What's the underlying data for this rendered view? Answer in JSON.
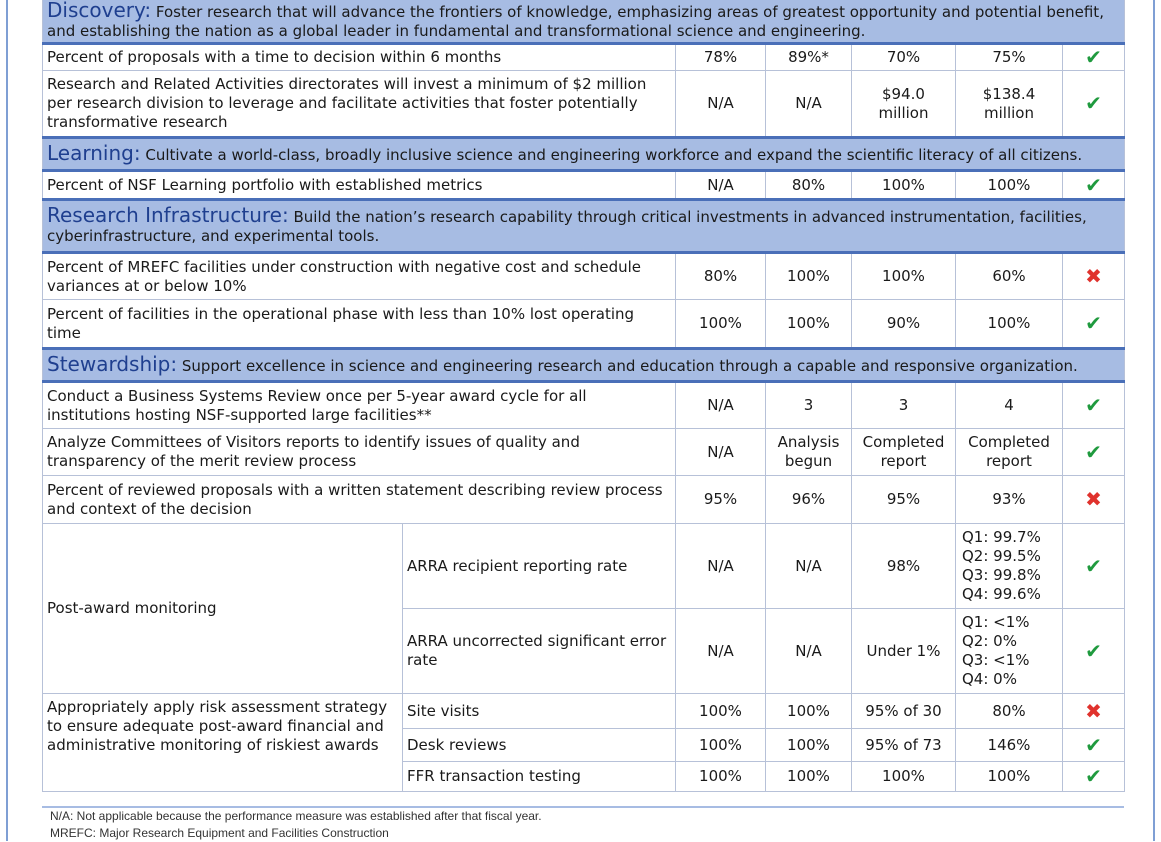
{
  "bands": {
    "discovery": {
      "title": "Discovery:",
      "text": "Foster research that will advance the frontiers of knowledge, emphasizing areas of greatest opportunity and potential benefit, and establishing the nation as a global leader in fundamental and transformational science and engineering."
    },
    "learning": {
      "title": "Learning:",
      "text": "Cultivate a world-class, broadly inclusive science and engineering workforce and expand the scientific literacy of all citizens."
    },
    "research": {
      "title": "Research Infrastructure:",
      "text": "Build the nation’s research capability through critical investments in advanced instrumentation, facilities, cyberinfrastructure, and experimental tools."
    },
    "stewardship": {
      "title": "Stewardship:",
      "text": "Support excellence in science and engineering research and education through a capable and responsive organization."
    }
  },
  "rows": {
    "r1": {
      "measure": "Percent of proposals with a time to decision within 6 months",
      "c1": "78%",
      "c2": "89%*",
      "c3": "70%",
      "c4": "75%",
      "status": "check"
    },
    "r2": {
      "measure": "Research and Related Activities directorates will invest a minimum of $2 million per research division to leverage and facilitate activities that foster potentially transformative research",
      "c1": "N/A",
      "c2": "N/A",
      "c3a": "$94.0",
      "c3b": "million",
      "c4a": "$138.4",
      "c4b": "million",
      "status": "check"
    },
    "r3": {
      "measure": "Percent of NSF Learning portfolio with established metrics",
      "c1": "N/A",
      "c2": "80%",
      "c3": "100%",
      "c4": "100%",
      "status": "check"
    },
    "r4": {
      "measure": "Percent of MREFC facilities under construction with negative cost and schedule variances at or below 10%",
      "c1": "80%",
      "c2": "100%",
      "c3": "100%",
      "c4": "60%",
      "status": "cross"
    },
    "r5": {
      "measure": "Percent of facilities in the operational phase with less than 10% lost operating time",
      "c1": "100%",
      "c2": "100%",
      "c3": "90%",
      "c4": "100%",
      "status": "check"
    },
    "r6": {
      "measure": "Conduct a Business Systems Review once per 5-year award cycle for all institutions hosting NSF-supported large facilities**",
      "c1": "N/A",
      "c2": "3",
      "c3": "3",
      "c4": "4",
      "status": "check"
    },
    "r7": {
      "measure": "Analyze Committees of Visitors reports to identify issues of quality and transparency of the merit review process",
      "c1": "N/A",
      "c2a": "Analysis",
      "c2b": "begun",
      "c3a": "Completed",
      "c3b": "report",
      "c4a": "Completed",
      "c4b": "report",
      "status": "check"
    },
    "r8": {
      "measure": "Percent of reviewed proposals with a written statement describing review process and context of the decision",
      "c1": "95%",
      "c2": "96%",
      "c3": "95%",
      "c4": "93%",
      "status": "cross"
    },
    "post_award": "Post-award monitoring",
    "r9": {
      "sub": "ARRA recipient reporting rate",
      "c1": "N/A",
      "c2": "N/A",
      "c3": "98%",
      "q": [
        "Q1: 99.7%",
        "Q2: 99.5%",
        "Q3: 99.8%",
        "Q4: 99.6%"
      ],
      "status": "check"
    },
    "r10": {
      "sub": "ARRA uncorrected significant error rate",
      "c1": "N/A",
      "c2": "N/A",
      "c3": "Under 1%",
      "q": [
        "Q1: <1%",
        "Q2:   0%",
        "Q3: <1%",
        "Q4:   0%"
      ],
      "status": "check"
    },
    "risk": "Appropriately apply risk assessment strategy to ensure adequate post-award financial and administrative monitoring of riskiest awards",
    "r11": {
      "sub": "Site visits",
      "c1": "100%",
      "c2": "100%",
      "c3": "95% of 30",
      "c4": "80%",
      "status": "cross"
    },
    "r12": {
      "sub": "Desk reviews",
      "c1": "100%",
      "c2": "100%",
      "c3": "95% of 73",
      "c4": "146%",
      "status": "check"
    },
    "r13": {
      "sub": "FFR transaction testing",
      "c1": "100%",
      "c2": "100%",
      "c3": "100%",
      "c4": "100%",
      "status": "check"
    }
  },
  "marks": {
    "check": "✔",
    "cross": "✖"
  },
  "notes": {
    "na": "N/A: Not applicable because the performance measure was established after that fiscal year.",
    "mrefc": "MREFC: Major Research Equipment and Facilities Construction"
  },
  "colors": {
    "band": "#a7bce3",
    "band_border": "#4a6fb8",
    "check": "#1f9a3e",
    "cross": "#e0322d"
  }
}
